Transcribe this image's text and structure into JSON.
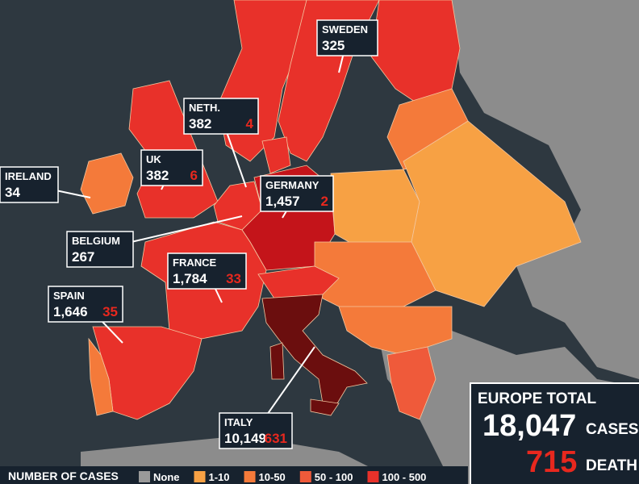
{
  "callouts": [
    {
      "country": "SWEDEN",
      "cases": "325"
    },
    {
      "country": "NETH.",
      "cases": "382",
      "deaths": "4"
    },
    {
      "country": "UK",
      "cases": "382",
      "deaths": "6"
    },
    {
      "country": "IRELAND",
      "cases": "34"
    },
    {
      "country": "GERMANY",
      "cases": "1,457",
      "deaths": "2"
    },
    {
      "country": "BELGIUM",
      "cases": "267"
    },
    {
      "country": "FRANCE",
      "cases": "1,784",
      "deaths": "33"
    },
    {
      "country": "SPAIN",
      "cases": "1,646",
      "deaths": "35"
    },
    {
      "country": "ITALY",
      "cases": "10,149",
      "deaths": "631"
    }
  ],
  "total": {
    "title": "EUROPE TOTAL",
    "cases": "18,047",
    "cases_label": "CASES",
    "deaths": "715",
    "deaths_label": "DEATH"
  },
  "legend": {
    "title": "NUMBER OF CASES",
    "items": [
      {
        "label": "None",
        "color": "#9a9a9a"
      },
      {
        "label": "1-10",
        "color": "#f7a144"
      },
      {
        "label": "10-50",
        "color": "#f47a3a"
      },
      {
        "label": "50 - 100",
        "color": "#ef5a3a"
      },
      {
        "label": "100 - 500",
        "color": "#e8312a"
      }
    ]
  }
}
